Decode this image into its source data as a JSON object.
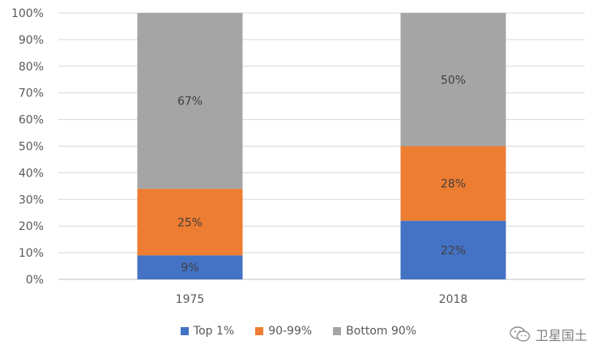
{
  "chart_data": {
    "type": "bar",
    "stacked": true,
    "categories": [
      "1975",
      "2018"
    ],
    "series": [
      {
        "name": "Top 1%",
        "values": [
          9,
          22
        ],
        "labels": [
          "9%",
          "22%"
        ],
        "color": "#4472C4"
      },
      {
        "name": "90-99%",
        "values": [
          25,
          28
        ],
        "labels": [
          "25%",
          "28%"
        ],
        "color": "#ED7D31"
      },
      {
        "name": "Bottom 90%",
        "values": [
          67,
          50
        ],
        "labels": [
          "67%",
          "50%"
        ],
        "color": "#A5A5A5"
      }
    ],
    "ylim": [
      0,
      100
    ],
    "yticks": [
      "0%",
      "10%",
      "20%",
      "30%",
      "40%",
      "50%",
      "60%",
      "70%",
      "80%",
      "90%",
      "100%"
    ],
    "grid": true,
    "legend_position": "bottom"
  },
  "watermark": {
    "text": "卫星国土",
    "icon": "wechat-icon"
  }
}
